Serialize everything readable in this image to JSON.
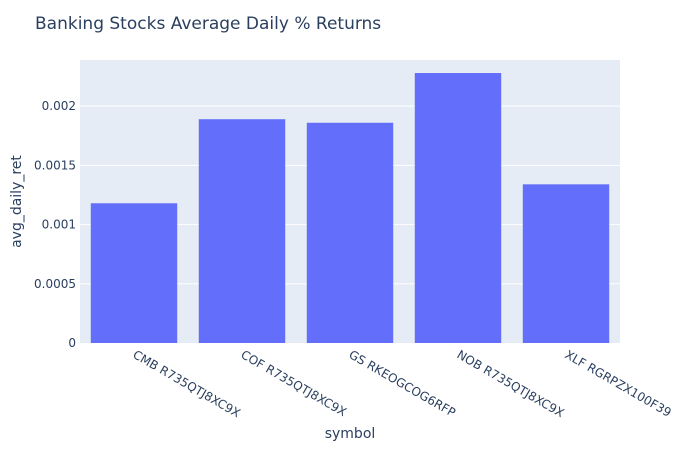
{
  "chart_data": {
    "type": "bar",
    "title": "Banking Stocks Average Daily % Returns",
    "xlabel": "symbol",
    "ylabel": "avg_daily_ret",
    "categories": [
      "CMB R735QTJ8XC9X",
      "COF R735QTJ8XC9X",
      "GS RKEOGCOG6RFP",
      "NOB R735QTJ8XC9X",
      "XLF RGRPZX100F39"
    ],
    "values": [
      0.00118,
      0.00189,
      0.00186,
      0.00228,
      0.00134
    ],
    "ylim": [
      0,
      0.00239
    ],
    "yticks": [
      0,
      0.0005,
      0.001,
      0.0015,
      0.002
    ],
    "ytick_labels": [
      "0",
      "0.0005",
      "0.001",
      "0.0015",
      "0.002"
    ],
    "grid": true,
    "colors": {
      "bar": "#636efa",
      "plot_bg": "#e5ecf6",
      "grid": "#ffffff",
      "text": "#2a3f5f"
    }
  }
}
